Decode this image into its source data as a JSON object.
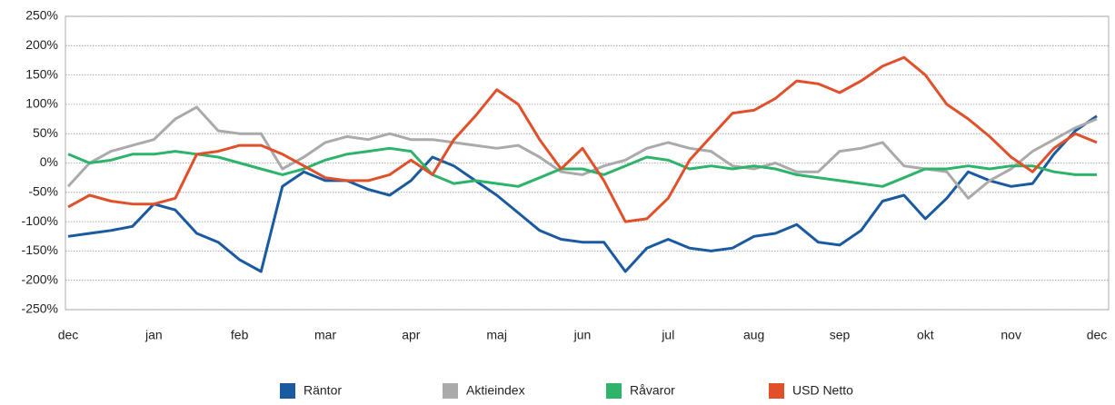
{
  "chart_data": {
    "type": "line",
    "x": [
      0,
      0.25,
      0.5,
      0.75,
      1,
      1.25,
      1.5,
      1.75,
      2,
      2.25,
      2.5,
      2.75,
      3,
      3.25,
      3.5,
      3.75,
      4,
      4.25,
      4.5,
      4.75,
      5,
      5.25,
      5.5,
      5.75,
      6,
      6.25,
      6.5,
      6.75,
      7,
      7.25,
      7.5,
      7.75,
      8,
      8.25,
      8.5,
      8.75,
      9,
      9.25,
      9.5,
      9.75,
      10,
      10.25,
      10.5,
      10.75,
      11,
      11.25,
      11.5,
      11.75,
      12
    ],
    "xlim": [
      0,
      12
    ],
    "xticks": [
      {
        "value": 0,
        "label": "dec"
      },
      {
        "value": 1,
        "label": "jan"
      },
      {
        "value": 2,
        "label": "feb"
      },
      {
        "value": 3,
        "label": "mar"
      },
      {
        "value": 4,
        "label": "apr"
      },
      {
        "value": 5,
        "label": "maj"
      },
      {
        "value": 6,
        "label": "jun"
      },
      {
        "value": 7,
        "label": "jul"
      },
      {
        "value": 8,
        "label": "aug"
      },
      {
        "value": 9,
        "label": "sep"
      },
      {
        "value": 10,
        "label": "okt"
      },
      {
        "value": 11,
        "label": "nov"
      },
      {
        "value": 12,
        "label": "dec"
      }
    ],
    "ylim": [
      -250,
      250
    ],
    "yticks": [
      {
        "value": 250,
        "label": "250%"
      },
      {
        "value": 200,
        "label": "200%"
      },
      {
        "value": 150,
        "label": "150%"
      },
      {
        "value": 100,
        "label": "100%"
      },
      {
        "value": 50,
        "label": "50%"
      },
      {
        "value": 0,
        "label": "0%"
      },
      {
        "value": -50,
        "label": "-50%"
      },
      {
        "value": -100,
        "label": "-100%"
      },
      {
        "value": -150,
        "label": "-150%"
      },
      {
        "value": -200,
        "label": "-200%"
      },
      {
        "value": -250,
        "label": "-250%"
      }
    ],
    "grid": true,
    "legend": "bottom",
    "series": [
      {
        "name": "Räntor",
        "color": "#1a5aa0",
        "values": [
          -125,
          -120,
          -115,
          -108,
          -70,
          -80,
          -120,
          -135,
          -165,
          -185,
          -40,
          -15,
          -30,
          -30,
          -45,
          -55,
          -30,
          10,
          -5,
          -30,
          -55,
          -85,
          -115,
          -130,
          -135,
          -135,
          -185,
          -145,
          -130,
          -145,
          -150,
          -145,
          -125,
          -120,
          -105,
          -135,
          -140,
          -115,
          -65,
          -55,
          -95,
          -60,
          -15,
          -30,
          -40,
          -35,
          15,
          55,
          80
        ]
      },
      {
        "name": "Aktieindex",
        "color": "#aaaaaa",
        "values": [
          -40,
          0,
          20,
          30,
          40,
          75,
          95,
          55,
          50,
          50,
          -10,
          10,
          35,
          45,
          40,
          50,
          40,
          40,
          35,
          30,
          25,
          30,
          10,
          -15,
          -20,
          -5,
          5,
          25,
          35,
          25,
          20,
          -5,
          -10,
          0,
          -15,
          -15,
          20,
          25,
          35,
          -5,
          -10,
          -15,
          -60,
          -30,
          -10,
          20,
          40,
          60,
          75
        ]
      },
      {
        "name": "Råvaror",
        "color": "#2eb36b",
        "values": [
          15,
          0,
          5,
          15,
          15,
          20,
          15,
          10,
          0,
          -10,
          -20,
          -10,
          5,
          15,
          20,
          25,
          20,
          -20,
          -35,
          -30,
          -35,
          -40,
          -25,
          -10,
          -10,
          -20,
          -5,
          10,
          5,
          -10,
          -5,
          -10,
          -5,
          -10,
          -20,
          -25,
          -30,
          -35,
          -40,
          -25,
          -10,
          -10,
          -5,
          -10,
          -5,
          -5,
          -15,
          -20,
          -20
        ]
      },
      {
        "name": "USD Netto",
        "color": "#e0502a",
        "values": [
          -75,
          -55,
          -65,
          -70,
          -70,
          -60,
          15,
          20,
          30,
          30,
          15,
          -5,
          -25,
          -30,
          -30,
          -20,
          5,
          -20,
          40,
          80,
          125,
          100,
          40,
          -10,
          25,
          -30,
          -100,
          -95,
          -60,
          5,
          45,
          85,
          90,
          110,
          140,
          135,
          120,
          140,
          165,
          180,
          150,
          100,
          75,
          45,
          10,
          -15,
          25,
          50,
          35
        ]
      }
    ]
  }
}
